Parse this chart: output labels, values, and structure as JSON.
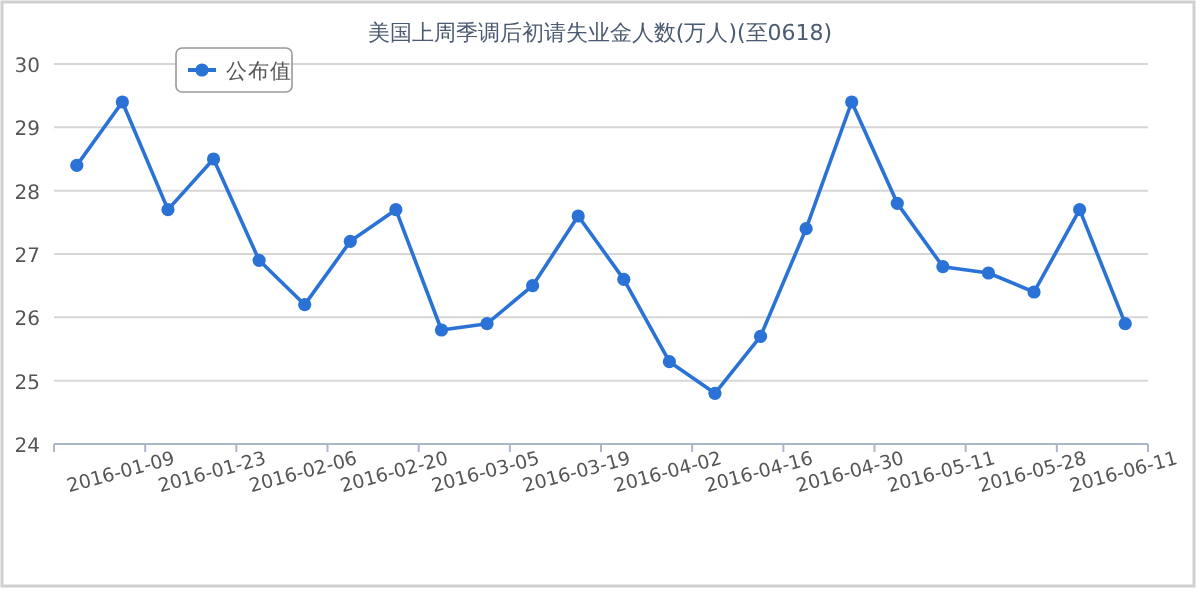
{
  "chart_data": {
    "type": "line",
    "title": "美国上周季调后初请失业金人数(万人)(至0618)",
    "categories": [
      null,
      "2016-01-09",
      null,
      "2016-01-23",
      null,
      "2016-02-06",
      null,
      "2016-02-20",
      null,
      "2016-03-05",
      null,
      "2016-03-19",
      null,
      "2016-04-02",
      null,
      "2016-04-16",
      null,
      "2016-04-30",
      null,
      "2016-05-11",
      null,
      "2016-05-28",
      null,
      "2016-06-11"
    ],
    "series": [
      {
        "name": "公布值",
        "color": "#2a72d5",
        "values": [
          28.4,
          29.4,
          27.7,
          28.5,
          26.9,
          26.2,
          27.2,
          27.7,
          25.8,
          25.9,
          26.5,
          27.6,
          26.6,
          25.3,
          24.8,
          25.7,
          27.4,
          29.4,
          27.8,
          26.8,
          26.7,
          26.4,
          27.7,
          25.9
        ]
      }
    ],
    "ylim": [
      24,
      30
    ],
    "yticks": [
      24,
      25,
      26,
      27,
      28,
      29,
      30
    ],
    "grid": "y",
    "legend": "top left",
    "marker": "circle",
    "line_style": "solid"
  }
}
